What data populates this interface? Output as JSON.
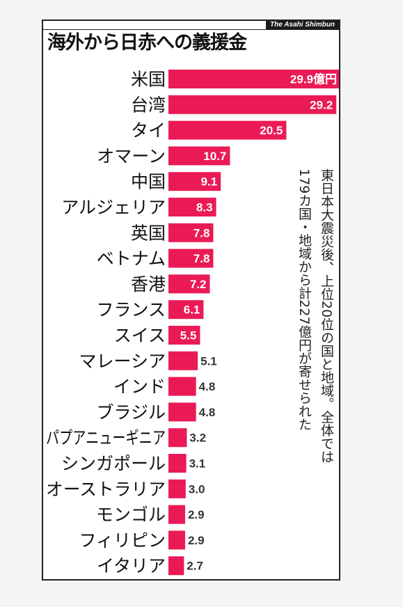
{
  "credit": "The Asahi Shimbun",
  "title": "海外から日赤への義援金",
  "colors": {
    "bar": "#ea1a56",
    "bar_text": "#ffffff",
    "outside_text": "#333333",
    "frame": "#222222"
  },
  "note": {
    "lines": [
      "東日本大震災後、上位20位の国と地域。全体では",
      "179カ国・地域から計227億円が寄せられた"
    ]
  },
  "chart_data": {
    "type": "bar",
    "orientation": "horizontal",
    "title": "海外から日赤への義援金",
    "unit": "億円",
    "categories": [
      "米国",
      "台湾",
      "タイ",
      "オマーン",
      "中国",
      "アルジェリア",
      "英国",
      "ベトナム",
      "香港",
      "フランス",
      "スイス",
      "マレーシア",
      "インド",
      "ブラジル",
      "パプアニューギニア",
      "シンガポール",
      "オーストラリア",
      "モンゴル",
      "フィリピン",
      "イタリア"
    ],
    "values": [
      29.9,
      29.2,
      20.5,
      10.7,
      9.1,
      8.3,
      7.8,
      7.8,
      7.2,
      6.1,
      5.5,
      5.1,
      4.8,
      4.8,
      3.2,
      3.1,
      3.0,
      2.9,
      2.9,
      2.7
    ],
    "value_labels": [
      "29.9億円",
      "29.2",
      "20.5",
      "10.7",
      "9.1",
      "8.3",
      "7.8",
      "7.8",
      "7.2",
      "6.1",
      "5.5",
      "5.1",
      "4.8",
      "4.8",
      "3.2",
      "3.1",
      "3.0",
      "2.9",
      "2.9",
      "2.7"
    ],
    "xlim": [
      0,
      29.9
    ],
    "grid": false,
    "legend": "none"
  }
}
